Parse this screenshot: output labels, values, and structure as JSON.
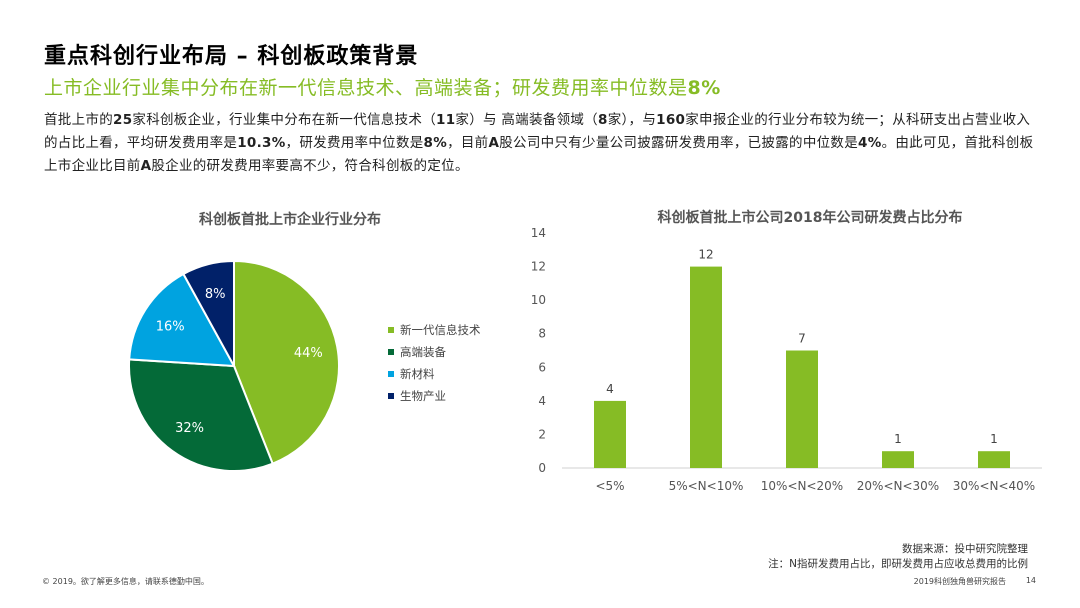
{
  "header": {
    "title": "重点科创行业布局 – 科创板政策背景",
    "subtitle_prefix": "上市企业行业集中分布在新一代信息技术、高端装备；研发费用率中位数是",
    "subtitle_highlight": "8%"
  },
  "paragraph": {
    "s1": "首批上市的",
    "s2": "25",
    "s3": "家科创板企业，行业集中分布在新一代信息技术（",
    "s4": "11",
    "s5": "家）与 高端装备领域（",
    "s6": "8",
    "s7": "家），与",
    "s8": "160",
    "s9": "家申报企业的行业分布较为统一；从科研支出占营业收入的占比上看，平均研发费用率是",
    "s10": "10.3%",
    "s11": "，研发费用率中位数是",
    "s12": "8%",
    "s13": "，目前",
    "s14": "A",
    "s15": "股公司中只有少量公司披露研发费用率，已披露的中位数是",
    "s16": "4%",
    "s17": "。由此可见，首批科创板上市企业比目前",
    "s18": "A",
    "s19": "股企业的研发费用率要高不少，符合科创板的定位。"
  },
  "chart_data": [
    {
      "type": "pie",
      "title": "科创板首批上市企业行业分布",
      "labels": [
        "新一代信息技术",
        "高端装备",
        "新材料",
        "生物产业"
      ],
      "values": [
        44,
        32,
        16,
        8
      ],
      "value_labels": [
        "44%",
        "32%",
        "16%",
        "8%"
      ],
      "colors": [
        "#86bc25",
        "#046a38",
        "#00a3e0",
        "#012169"
      ],
      "legend_position": "right"
    },
    {
      "type": "bar",
      "title": "科创板首批上市公司2018年公司研发费占比分布",
      "categories": [
        "<5%",
        "5%<N<10%",
        "10%<N<20%",
        "20%<N<30%",
        "30%<N<40%"
      ],
      "values": [
        4,
        12,
        7,
        1,
        1
      ],
      "ylim": [
        0,
        14
      ],
      "yticks": [
        "0",
        "2",
        "4",
        "6",
        "8",
        "10",
        "12",
        "14"
      ],
      "color": "#86bc25",
      "grid": false
    }
  ],
  "footer": {
    "source": "数据来源：投中研究院整理",
    "note": "注：N指研发费用占比，即研发费用占应收总费用的比例",
    "copyright": "© 2019。欲了解更多信息，请联系德勤中国。",
    "report": "2019科创独角兽研究报告",
    "page": "14"
  }
}
